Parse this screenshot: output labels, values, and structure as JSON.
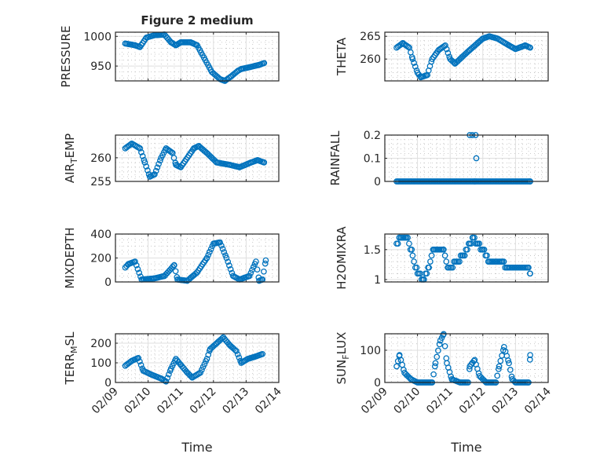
{
  "chart_data": [
    {
      "type": "scatter",
      "title": "Figure 2 medium",
      "ylabel": "PRESSURE",
      "xlabel": "",
      "ylim": [
        925,
        1007
      ],
      "yticks": [
        950,
        1000
      ],
      "yminor": 10,
      "x_start": "02/09",
      "keypoints": [
        [
          0.3,
          988
        ],
        [
          0.6,
          985
        ],
        [
          0.75,
          982
        ],
        [
          0.95,
          998
        ],
        [
          1.2,
          1002
        ],
        [
          1.5,
          1003
        ],
        [
          1.7,
          990
        ],
        [
          1.85,
          985
        ],
        [
          2.0,
          990
        ],
        [
          2.3,
          990
        ],
        [
          2.5,
          985
        ],
        [
          2.75,
          960
        ],
        [
          2.95,
          940
        ],
        [
          3.2,
          928
        ],
        [
          3.35,
          925
        ],
        [
          3.55,
          933
        ],
        [
          3.75,
          942
        ],
        [
          3.85,
          945
        ],
        [
          4.1,
          948
        ],
        [
          4.4,
          952
        ],
        [
          4.55,
          955
        ]
      ]
    },
    {
      "type": "scatter",
      "title": "",
      "ylabel": "THETA",
      "xlabel": "",
      "ylim": [
        255.2,
        265.9
      ],
      "yticks": [
        260,
        265
      ],
      "yminor": 1,
      "keypoints": [
        [
          0.36,
          262.5
        ],
        [
          0.55,
          263.5
        ],
        [
          0.75,
          262.5
        ],
        [
          0.85,
          260
        ],
        [
          1.0,
          257
        ],
        [
          1.1,
          256
        ],
        [
          1.3,
          256.5
        ],
        [
          1.45,
          260
        ],
        [
          1.65,
          262
        ],
        [
          1.85,
          263
        ],
        [
          2.0,
          260
        ],
        [
          2.15,
          259
        ],
        [
          2.6,
          262
        ],
        [
          3.0,
          264.5
        ],
        [
          3.2,
          265
        ],
        [
          3.45,
          264.5
        ],
        [
          3.8,
          263
        ],
        [
          4.0,
          262.2
        ],
        [
          4.3,
          263
        ],
        [
          4.45,
          262.5
        ]
      ]
    },
    {
      "type": "scatter",
      "title": "",
      "ylabel": "AIR_TEMP",
      "xlabel": "",
      "ylim": [
        255,
        264.8
      ],
      "yticks": [
        255,
        260
      ],
      "yminor": 1,
      "keypoints": [
        [
          0.3,
          262
        ],
        [
          0.5,
          263
        ],
        [
          0.75,
          262
        ],
        [
          0.9,
          259
        ],
        [
          1.05,
          256
        ],
        [
          1.2,
          256.5
        ],
        [
          1.4,
          260
        ],
        [
          1.55,
          262
        ],
        [
          1.75,
          261
        ],
        [
          1.85,
          258.5
        ],
        [
          2.0,
          258
        ],
        [
          2.4,
          262
        ],
        [
          2.55,
          262.5
        ],
        [
          2.8,
          261
        ],
        [
          3.1,
          259
        ],
        [
          3.5,
          258.5
        ],
        [
          3.8,
          258
        ],
        [
          4.15,
          259
        ],
        [
          4.35,
          259.5
        ],
        [
          4.55,
          259
        ]
      ]
    },
    {
      "type": "scatter",
      "title": "",
      "ylabel": "RAINFALL",
      "xlabel": "",
      "ylim": [
        0,
        0.2
      ],
      "yticks": [
        0,
        0.1,
        0.2
      ],
      "yminor": 0.02,
      "keypoints": [
        [
          0.36,
          0
        ],
        [
          4.45,
          0
        ]
      ],
      "extra_points": [
        [
          2.6,
          0.2
        ],
        [
          2.68,
          0.2
        ],
        [
          2.78,
          0.2
        ],
        [
          2.8,
          0.1
        ],
        [
          2.75,
          0
        ]
      ]
    },
    {
      "type": "scatter",
      "title": "",
      "ylabel": "MIXDEPTH",
      "xlabel": "",
      "ylim": [
        0,
        400
      ],
      "yticks": [
        0,
        200,
        400
      ],
      "yminor": 50,
      "keypoints": [
        [
          0.3,
          120
        ],
        [
          0.4,
          150
        ],
        [
          0.6,
          170
        ],
        [
          0.8,
          20
        ],
        [
          1.2,
          30
        ],
        [
          1.5,
          50
        ],
        [
          1.8,
          140
        ],
        [
          1.9,
          20
        ],
        [
          2.2,
          10
        ],
        [
          2.5,
          80
        ],
        [
          2.8,
          200
        ],
        [
          3.0,
          320
        ],
        [
          3.2,
          330
        ],
        [
          3.4,
          200
        ],
        [
          3.6,
          50
        ],
        [
          3.8,
          20
        ],
        [
          4.1,
          50
        ],
        [
          4.3,
          170
        ],
        [
          4.4,
          10
        ],
        [
          4.5,
          20
        ],
        [
          4.6,
          180
        ]
      ]
    },
    {
      "type": "scatter",
      "title": "",
      "ylabel": "H2OMIXRA",
      "xlabel": "",
      "ylim": [
        0.96,
        1.76
      ],
      "yticks": [
        1,
        1.5
      ],
      "yminor": 0.1,
      "round": 0.1,
      "keypoints": [
        [
          0.36,
          1.6
        ],
        [
          0.45,
          1.7
        ],
        [
          0.7,
          1.7
        ],
        [
          0.85,
          1.4
        ],
        [
          1.0,
          1.1
        ],
        [
          1.2,
          1.0
        ],
        [
          1.35,
          1.2
        ],
        [
          1.5,
          1.5
        ],
        [
          1.8,
          1.5
        ],
        [
          1.95,
          1.2
        ],
        [
          2.2,
          1.3
        ],
        [
          2.4,
          1.4
        ],
        [
          2.6,
          1.6
        ],
        [
          2.7,
          1.7
        ],
        [
          2.85,
          1.6
        ],
        [
          3.0,
          1.5
        ],
        [
          3.2,
          1.3
        ],
        [
          3.6,
          1.3
        ],
        [
          3.75,
          1.2
        ],
        [
          4.4,
          1.2
        ],
        [
          4.45,
          1.1
        ]
      ]
    },
    {
      "type": "scatter",
      "title": "",
      "ylabel": "TERR_MSL",
      "xlabel": "Time",
      "ylim": [
        0,
        248
      ],
      "yticks": [
        0,
        100,
        200
      ],
      "yminor": 20,
      "keypoints": [
        [
          0.3,
          85
        ],
        [
          0.5,
          110
        ],
        [
          0.7,
          125
        ],
        [
          0.85,
          60
        ],
        [
          1.1,
          40
        ],
        [
          1.4,
          20
        ],
        [
          1.55,
          5
        ],
        [
          1.7,
          70
        ],
        [
          1.85,
          120
        ],
        [
          2.0,
          90
        ],
        [
          2.2,
          50
        ],
        [
          2.35,
          25
        ],
        [
          2.6,
          50
        ],
        [
          2.8,
          120
        ],
        [
          2.9,
          170
        ],
        [
          3.1,
          200
        ],
        [
          3.3,
          230
        ],
        [
          3.5,
          190
        ],
        [
          3.7,
          160
        ],
        [
          3.85,
          100
        ],
        [
          4.05,
          120
        ],
        [
          4.25,
          130
        ],
        [
          4.5,
          145
        ]
      ]
    },
    {
      "type": "scatter",
      "title": "",
      "ylabel": "SUN_FLUX",
      "xlabel": "Time",
      "ylim": [
        0,
        151
      ],
      "yticks": [
        0,
        100
      ],
      "yminor": 20,
      "keypoints": [
        [
          0.36,
          50
        ],
        [
          0.45,
          85
        ],
        [
          0.6,
          30
        ],
        [
          0.8,
          10
        ],
        [
          1.0,
          0
        ],
        [
          1.45,
          0
        ],
        [
          1.55,
          60
        ],
        [
          1.7,
          130
        ],
        [
          1.8,
          150
        ],
        [
          1.9,
          60
        ],
        [
          2.05,
          10
        ],
        [
          2.3,
          0
        ],
        [
          2.55,
          0
        ],
        [
          2.6,
          50
        ],
        [
          2.75,
          70
        ],
        [
          2.9,
          20
        ],
        [
          3.1,
          0
        ],
        [
          3.4,
          0
        ],
        [
          3.5,
          50
        ],
        [
          3.65,
          110
        ],
        [
          3.8,
          60
        ],
        [
          3.9,
          10
        ],
        [
          4.0,
          0
        ],
        [
          4.4,
          0
        ],
        [
          4.45,
          85
        ]
      ]
    }
  ],
  "xticks": [
    "02/09",
    "02/10",
    "02/11",
    "02/12",
    "02/13",
    "02/14"
  ],
  "colors": {
    "marker": "#0072BD",
    "axis": "#262626",
    "grid": "#dfdfdf"
  }
}
